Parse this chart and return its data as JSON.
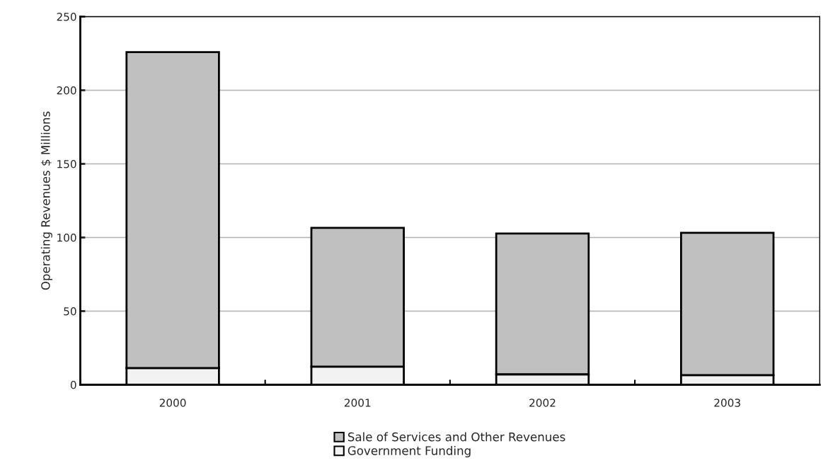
{
  "chart_data": {
    "type": "bar",
    "stacked": true,
    "ylabel": "Operating Revenues $ Millions",
    "categories": [
      "2000",
      "2001",
      "2002",
      "2003"
    ],
    "series": [
      {
        "name": "Government Funding",
        "color": "#f2f2f2",
        "values": [
          11.4,
          12.3,
          7.1,
          6.6
        ]
      },
      {
        "name": "Sale of Services and Other Revenues",
        "color": "#c0c0c0",
        "values": [
          214.5,
          94.2,
          95.6,
          96.6
        ]
      }
    ],
    "ylim": [
      0,
      250
    ],
    "yticks": [
      0,
      50,
      100,
      150,
      200,
      250
    ],
    "grid": "y",
    "legend": "bottom"
  }
}
